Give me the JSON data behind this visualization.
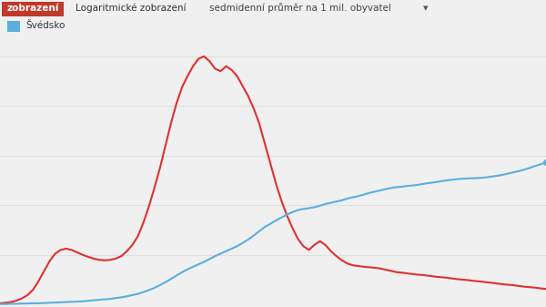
{
  "background_color": "#f0f0f0",
  "plot_bg_color": "#ffffff",
  "header_bg": "#f0f0f0",
  "red_label_bg": "#c0392b",
  "red_label_text": "zobrazení",
  "label2": "Logaritmické zobrazení",
  "label3": "sedmidenní průměr na 1 mil. obyvatel",
  "legend_label": "Švédsko",
  "legend_color": "#5baee0",
  "red_line_color": "#e03030",
  "blue_line_color": "#5baee0",
  "grid_color": "#e0e0e0",
  "red_y": [
    0.005,
    0.007,
    0.01,
    0.016,
    0.025,
    0.038,
    0.06,
    0.095,
    0.135,
    0.175,
    0.205,
    0.22,
    0.225,
    0.22,
    0.21,
    0.2,
    0.192,
    0.185,
    0.18,
    0.178,
    0.18,
    0.185,
    0.195,
    0.215,
    0.24,
    0.275,
    0.33,
    0.395,
    0.47,
    0.55,
    0.64,
    0.73,
    0.81,
    0.875,
    0.92,
    0.96,
    0.99,
    1.0,
    0.98,
    0.95,
    0.94,
    0.96,
    0.945,
    0.92,
    0.88,
    0.84,
    0.79,
    0.73,
    0.65,
    0.57,
    0.49,
    0.42,
    0.36,
    0.31,
    0.265,
    0.235,
    0.22,
    0.24,
    0.255,
    0.24,
    0.215,
    0.195,
    0.178,
    0.165,
    0.158,
    0.155,
    0.152,
    0.15,
    0.148,
    0.145,
    0.14,
    0.135,
    0.13,
    0.128,
    0.125,
    0.122,
    0.12,
    0.118,
    0.115,
    0.112,
    0.11,
    0.108,
    0.105,
    0.102,
    0.1,
    0.098,
    0.095,
    0.093,
    0.09,
    0.088,
    0.085,
    0.082,
    0.08,
    0.078,
    0.075,
    0.072,
    0.07,
    0.068,
    0.065,
    0.063
  ],
  "blue_y": [
    0.002,
    0.002,
    0.003,
    0.003,
    0.004,
    0.004,
    0.005,
    0.005,
    0.006,
    0.007,
    0.008,
    0.009,
    0.01,
    0.011,
    0.012,
    0.013,
    0.015,
    0.017,
    0.019,
    0.021,
    0.023,
    0.026,
    0.029,
    0.033,
    0.038,
    0.043,
    0.05,
    0.058,
    0.067,
    0.078,
    0.09,
    0.103,
    0.117,
    0.13,
    0.142,
    0.152,
    0.162,
    0.172,
    0.183,
    0.195,
    0.205,
    0.215,
    0.225,
    0.235,
    0.248,
    0.262,
    0.278,
    0.295,
    0.312,
    0.325,
    0.338,
    0.35,
    0.362,
    0.372,
    0.38,
    0.385,
    0.388,
    0.392,
    0.398,
    0.405,
    0.41,
    0.415,
    0.42,
    0.427,
    0.432,
    0.437,
    0.443,
    0.45,
    0.455,
    0.46,
    0.465,
    0.47,
    0.473,
    0.475,
    0.478,
    0.48,
    0.483,
    0.487,
    0.49,
    0.493,
    0.497,
    0.5,
    0.503,
    0.505,
    0.507,
    0.508,
    0.509,
    0.51,
    0.512,
    0.515,
    0.518,
    0.522,
    0.527,
    0.532,
    0.537,
    0.543,
    0.55,
    0.558,
    0.565,
    0.572
  ]
}
